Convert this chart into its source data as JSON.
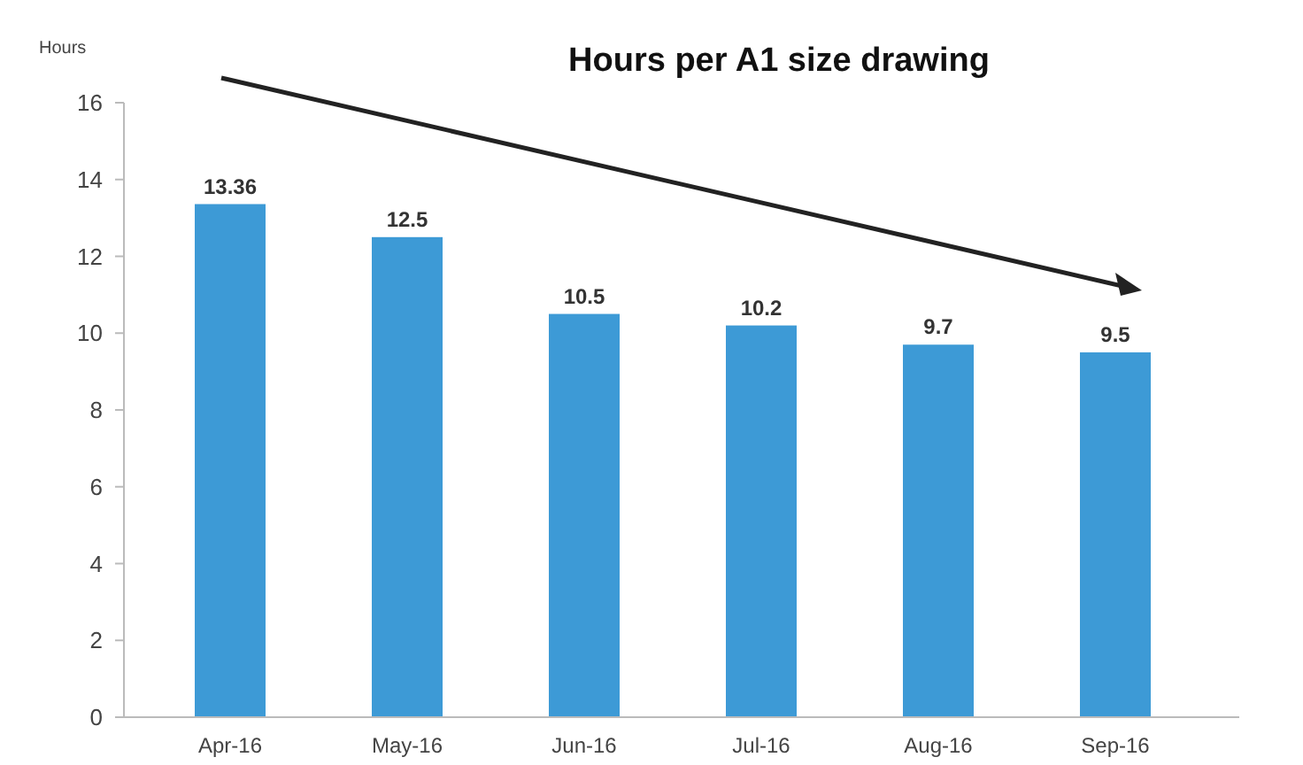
{
  "chart_data": {
    "type": "bar",
    "title": "Hours per A1 size drawing",
    "ylabel": "Hours",
    "categories": [
      "Apr-16",
      "May-16",
      "Jun-16",
      "Jul-16",
      "Aug-16",
      "Sep-16"
    ],
    "values": [
      13.36,
      12.5,
      10.5,
      10.2,
      9.7,
      9.5
    ],
    "color": "#3d9ad6",
    "ylim": [
      0,
      16
    ],
    "yticks": [
      0,
      2,
      4,
      6,
      8,
      10,
      12,
      14,
      16
    ],
    "grid": false,
    "data_labels": true
  }
}
